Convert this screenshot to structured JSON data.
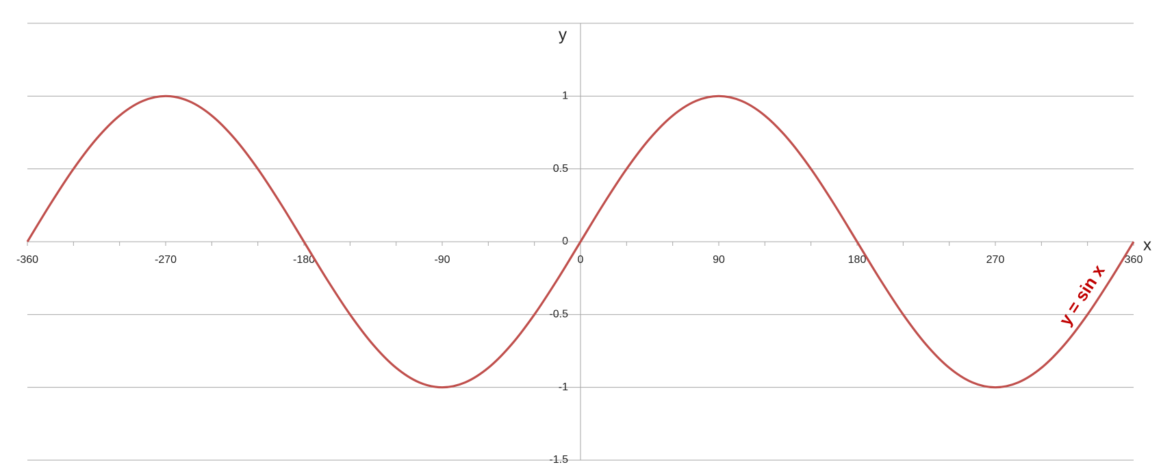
{
  "chart_data": {
    "type": "line",
    "x_label": "x",
    "y_label": "y",
    "annotation": "y = sin x",
    "x": [
      -360,
      -345,
      -330,
      -315,
      -300,
      -285,
      -270,
      -255,
      -240,
      -225,
      -210,
      -195,
      -180,
      -165,
      -150,
      -135,
      -120,
      -105,
      -90,
      -75,
      -60,
      -45,
      -30,
      -15,
      0,
      15,
      30,
      45,
      60,
      75,
      90,
      105,
      120,
      135,
      150,
      165,
      180,
      195,
      210,
      225,
      240,
      255,
      270,
      285,
      300,
      315,
      330,
      345,
      360
    ],
    "series": [
      {
        "name": "y = sin x",
        "color": "#c0504d",
        "values": [
          0,
          0.259,
          0.5,
          0.707,
          0.866,
          0.966,
          1,
          0.966,
          0.866,
          0.707,
          0.5,
          0.259,
          0,
          -0.259,
          -0.5,
          -0.707,
          -0.866,
          -0.966,
          -1,
          -0.966,
          -0.866,
          -0.707,
          -0.5,
          -0.259,
          0,
          0.259,
          0.5,
          0.707,
          0.866,
          0.966,
          1,
          0.966,
          0.866,
          0.707,
          0.5,
          0.259,
          0,
          -0.259,
          -0.5,
          -0.707,
          -0.866,
          -0.966,
          -1,
          -0.966,
          -0.866,
          -0.707,
          -0.5,
          -0.259,
          0
        ]
      }
    ],
    "xlim": [
      -360,
      360
    ],
    "xticks": [
      -360,
      -270,
      -180,
      -90,
      0,
      90,
      180,
      270,
      360
    ],
    "xminorticks": [
      -330,
      -300,
      -240,
      -210,
      -150,
      -120,
      -60,
      -30,
      30,
      60,
      120,
      150,
      210,
      240,
      300,
      330
    ],
    "ylim": [
      -1.5,
      1.5
    ],
    "yticks": [
      -1.5,
      -1,
      -0.5,
      0,
      0.5,
      1
    ],
    "grid": true
  }
}
